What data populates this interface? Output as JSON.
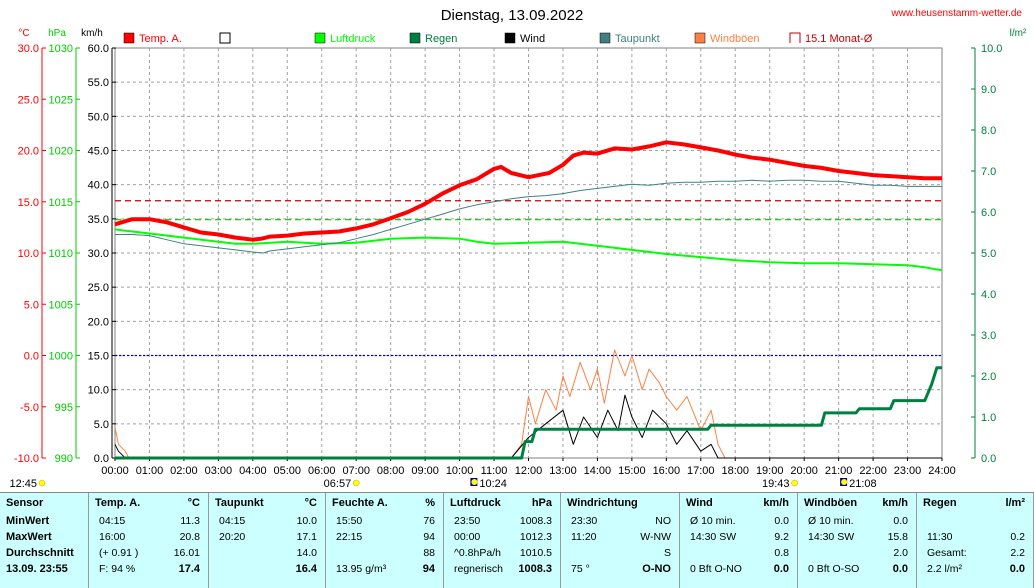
{
  "title": "Dienstag, 13.09.2022",
  "website": "www.heusenstamm-wetter.de",
  "axis_units": {
    "temp": "°C",
    "pressure": "hPa",
    "wind": "km/h",
    "rain": "l/m²"
  },
  "legend": [
    {
      "label": "Temp. A.",
      "color": "#ff0000",
      "style": "filled"
    },
    {
      "label": "",
      "color": "#ffffff",
      "style": "empty"
    },
    {
      "label": "Luftdruck",
      "color": "#00ff00",
      "style": "filled"
    },
    {
      "label": "Regen",
      "color": "#008040",
      "style": "filled"
    },
    {
      "label": "Wind",
      "color": "#000000",
      "style": "filled"
    },
    {
      "label": "Taupunkt",
      "color": "#408080",
      "style": "filled"
    },
    {
      "label": "Windböen",
      "color": "#ff8040",
      "style": "filled"
    },
    {
      "label": "15.1 Monat-Ø",
      "color": "#c00000",
      "style": "bracket"
    }
  ],
  "chart_data": {
    "type": "line",
    "x_range": [
      "00:00",
      "24:00"
    ],
    "x_ticks": [
      "00:00",
      "01:00",
      "02:00",
      "03:00",
      "04:00",
      "05:00",
      "06:00",
      "07:00",
      "08:00",
      "09:00",
      "10:00",
      "11:00",
      "12:00",
      "13:00",
      "14:00",
      "15:00",
      "16:00",
      "17:00",
      "18:00",
      "19:00",
      "20:00",
      "21:00",
      "22:00",
      "23:00",
      "24:00"
    ],
    "axes": {
      "temp": {
        "label": "°C",
        "range": [
          -10,
          30
        ],
        "ticks": [
          "30.0",
          "25.0",
          "20.0",
          "15.0",
          "10.0",
          "5.0",
          "0.0",
          "-5.0",
          "-10.0"
        ]
      },
      "pressure": {
        "label": "hPa",
        "range": [
          990,
          1030
        ],
        "ticks": [
          "1030",
          "1025",
          "1020",
          "1015",
          "1010",
          "1005",
          "1000",
          "995",
          "990"
        ]
      },
      "wind": {
        "label": "km/h",
        "range": [
          0,
          60
        ],
        "ticks": [
          "60.0",
          "55.0",
          "50.0",
          "45.0",
          "40.0",
          "35.0",
          "30.0",
          "25.0",
          "20.0",
          "15.0",
          "10.0",
          "5.0",
          "0.0"
        ]
      },
      "rain": {
        "label": "l/m²",
        "range": [
          0,
          10
        ],
        "ticks": [
          "10.0",
          "9.0",
          "8.0",
          "7.0",
          "6.0",
          "5.0",
          "4.0",
          "3.0",
          "2.0",
          "1.0",
          "0.0"
        ]
      }
    },
    "series": [
      {
        "name": "Temp. A.",
        "axis": "temp",
        "color": "#ff0000",
        "width": 4,
        "x": [
          0,
          0.5,
          1,
          1.5,
          2,
          2.5,
          3,
          3.5,
          4,
          4.25,
          4.5,
          5,
          5.5,
          6,
          6.5,
          7,
          7.5,
          8,
          8.5,
          9,
          9.5,
          10,
          10.5,
          11,
          11.2,
          11.5,
          12,
          12.3,
          12.6,
          13,
          13.3,
          13.6,
          14,
          14.5,
          15,
          15.5,
          16,
          16.5,
          17,
          17.5,
          18,
          18.5,
          19,
          19.5,
          20,
          20.5,
          21,
          21.5,
          22,
          22.5,
          23,
          23.5,
          24
        ],
        "y": [
          12.8,
          13.3,
          13.3,
          13.0,
          12.5,
          12.0,
          11.8,
          11.5,
          11.3,
          11.4,
          11.6,
          11.7,
          11.9,
          12.0,
          12.1,
          12.4,
          12.8,
          13.4,
          14.0,
          14.8,
          15.8,
          16.6,
          17.2,
          18.2,
          18.4,
          17.8,
          17.4,
          17.6,
          17.8,
          18.6,
          19.5,
          19.8,
          19.7,
          20.2,
          20.1,
          20.4,
          20.8,
          20.6,
          20.3,
          20.0,
          19.6,
          19.3,
          19.1,
          18.8,
          18.5,
          18.3,
          18.0,
          17.8,
          17.6,
          17.5,
          17.4,
          17.3,
          17.3
        ]
      },
      {
        "name": "Taupunkt",
        "axis": "temp",
        "color": "#408080",
        "width": 1,
        "x": [
          0,
          0.5,
          1,
          1.5,
          2,
          2.5,
          3,
          3.5,
          4,
          4.3,
          4.5,
          5,
          5.5,
          6,
          6.5,
          7,
          7.5,
          8,
          8.5,
          9,
          9.5,
          10,
          10.5,
          11,
          11.5,
          12,
          12.5,
          13,
          13.5,
          14,
          14.5,
          15,
          15.5,
          16,
          16.5,
          17,
          17.5,
          18,
          18.5,
          19,
          19.5,
          20,
          20.5,
          21,
          21.5,
          22,
          22.5,
          23,
          23.5,
          24
        ],
        "y": [
          11.8,
          11.8,
          11.7,
          11.3,
          10.9,
          10.7,
          10.5,
          10.3,
          10.1,
          10.0,
          10.2,
          10.4,
          10.6,
          10.8,
          11.0,
          11.4,
          11.8,
          12.3,
          12.8,
          13.3,
          13.8,
          14.3,
          14.7,
          15.0,
          15.3,
          15.5,
          15.6,
          15.8,
          16.1,
          16.3,
          16.5,
          16.7,
          16.6,
          16.8,
          16.9,
          16.9,
          17.0,
          17.0,
          17.1,
          17.0,
          17.1,
          17.1,
          17.0,
          17.0,
          16.8,
          16.6,
          16.6,
          16.5,
          16.5,
          16.5
        ]
      },
      {
        "name": "Luftdruck",
        "axis": "pressure",
        "color": "#00ff00",
        "width": 2,
        "x": [
          0,
          1,
          2,
          3,
          3.5,
          4,
          5,
          6,
          7,
          8,
          9,
          10,
          10.5,
          11,
          12,
          13,
          14,
          15,
          16,
          17,
          18,
          19,
          20,
          21,
          22,
          23,
          23.5,
          24
        ],
        "y": [
          1012.3,
          1011.9,
          1011.5,
          1011.1,
          1010.9,
          1010.9,
          1011.1,
          1010.9,
          1011.0,
          1011.4,
          1011.5,
          1011.4,
          1011.1,
          1010.9,
          1011.0,
          1011.1,
          1010.7,
          1010.3,
          1009.9,
          1009.6,
          1009.3,
          1009.1,
          1009.0,
          1009.0,
          1008.9,
          1008.8,
          1008.6,
          1008.3
        ]
      },
      {
        "name": "Wind",
        "axis": "wind",
        "color": "#000000",
        "width": 1,
        "x": [
          0,
          0.1,
          0.3,
          11,
          11.5,
          12,
          12.5,
          13,
          13.3,
          13.6,
          14,
          14.3,
          14.6,
          14.8,
          15,
          15.3,
          15.6,
          16,
          16.3,
          16.6,
          17,
          17.3,
          17.5,
          24
        ],
        "y": [
          2.0,
          1.0,
          0,
          0,
          0,
          3.0,
          5.0,
          7.0,
          2.0,
          6.0,
          3.0,
          7.0,
          4.0,
          9.2,
          6.0,
          3.0,
          7.0,
          5.0,
          2.0,
          4.0,
          1.0,
          2.0,
          0,
          0
        ]
      },
      {
        "name": "Windböen",
        "axis": "wind",
        "color": "#ff8040",
        "width": 1,
        "x": [
          0,
          0.1,
          0.3,
          0.4,
          11,
          11.5,
          11.8,
          12,
          12.2,
          12.5,
          12.8,
          13,
          13.2,
          13.5,
          13.8,
          14,
          14.2,
          14.5,
          14.8,
          15,
          15.3,
          15.5,
          15.8,
          16,
          16.3,
          16.6,
          17,
          17.3,
          17.5,
          17.7,
          24
        ],
        "y": [
          4.5,
          2.0,
          1.0,
          0,
          0,
          0,
          2.0,
          9.0,
          5.0,
          10.0,
          7.0,
          12.0,
          9.0,
          14.0,
          10.0,
          13.0,
          8.0,
          15.8,
          12.0,
          15.0,
          10.0,
          13.0,
          11.0,
          9.0,
          7.0,
          9.0,
          4.0,
          7.0,
          2.0,
          0,
          0
        ]
      },
      {
        "name": "Regen",
        "axis": "rain",
        "color": "#008040",
        "width": 3,
        "x": [
          0,
          11.8,
          11.9,
          12.1,
          12.2,
          17.2,
          17.3,
          20.5,
          20.6,
          21.5,
          21.6,
          22.5,
          22.6,
          23.5,
          23.7,
          23.85,
          24
        ],
        "y": [
          0,
          0,
          0.4,
          0.4,
          0.7,
          0.7,
          0.8,
          0.8,
          1.1,
          1.1,
          1.2,
          1.2,
          1.4,
          1.4,
          1.8,
          2.2,
          2.2
        ]
      }
    ],
    "reference_lines": [
      {
        "name": "15.1 Monat-Ø",
        "axis": "temp",
        "value": 15.1,
        "color": "#c00000",
        "dash": "6,4"
      },
      {
        "axis": "pressure",
        "value": 1013.25,
        "color": "#00cc00",
        "dash": "6,4"
      },
      {
        "axis": "temp",
        "value": 0,
        "color": "#0000c0",
        "dash": "2,2"
      }
    ],
    "time_markers": [
      {
        "label": "12:45",
        "marker": "sun",
        "time": 0
      },
      {
        "label": "06:57",
        "marker": "sun",
        "time": 7.0
      },
      {
        "label": "10:24",
        "marker": "moon",
        "time": 10.4
      },
      {
        "label": "19:43",
        "marker": "sun",
        "time": 19.72
      },
      {
        "label": "21:08",
        "marker": "moon",
        "time": 21.13
      }
    ]
  },
  "table": {
    "row_labels": {
      "sensor": "Sensor",
      "min": "MinWert",
      "max": "MaxWert",
      "avg": "Durchschnitt",
      "current": "13.09. 23:55"
    },
    "columns": [
      {
        "title": "Temp. A.",
        "unit": "°C",
        "rows": [
          [
            "04:15",
            "11.3"
          ],
          [
            "16:00",
            "20.8"
          ],
          [
            "(+ 0.91 )",
            "16.01"
          ],
          [
            "F: 94 %",
            "17.4"
          ]
        ]
      },
      {
        "title": "Taupunkt",
        "unit": "°C",
        "rows": [
          [
            "04:15",
            "10.0"
          ],
          [
            "20:20",
            "17.1"
          ],
          [
            "",
            "14.0"
          ],
          [
            "",
            "16.4"
          ]
        ]
      },
      {
        "title": "Feuchte A.",
        "unit": "%",
        "rows": [
          [
            "15:50",
            "76"
          ],
          [
            "22:15",
            "94"
          ],
          [
            "",
            "88"
          ],
          [
            "13.95 g/m³",
            "94"
          ]
        ]
      },
      {
        "title": "Luftdruck",
        "unit": "hPa",
        "rows": [
          [
            "23:50",
            "1008.3"
          ],
          [
            "00:00",
            "1012.3"
          ],
          [
            "^0.8hPa/h",
            "1010.5"
          ],
          [
            "regnerisch",
            "1008.3"
          ]
        ]
      },
      {
        "title": "Windrichtung",
        "unit": "",
        "rows": [
          [
            "23:30",
            "NO"
          ],
          [
            "11:20",
            "W-NW"
          ],
          [
            "",
            "S"
          ],
          [
            "75 °",
            "O-NO"
          ]
        ]
      },
      {
        "title": "Wind",
        "unit": "km/h",
        "rows": [
          [
            "Ø 10 min.",
            "0.0"
          ],
          [
            "14:30   SW",
            "9.2"
          ],
          [
            "",
            "0.8"
          ],
          [
            "0 Bft O-NO",
            "0.0"
          ]
        ]
      },
      {
        "title": "Windböen",
        "unit": "km/h",
        "rows": [
          [
            "Ø 10 min.",
            "0.0"
          ],
          [
            "14:30   SW",
            "15.8"
          ],
          [
            "",
            "2.0"
          ],
          [
            "0 Bft O-SO",
            "0.0"
          ]
        ]
      },
      {
        "title": "Regen",
        "unit": "l/m²",
        "rows": [
          [
            "",
            ""
          ],
          [
            "11:30",
            "0.2"
          ],
          [
            "Gesamt:",
            "2.2"
          ],
          [
            "2.2 l/m²",
            "0.0"
          ]
        ]
      }
    ]
  }
}
